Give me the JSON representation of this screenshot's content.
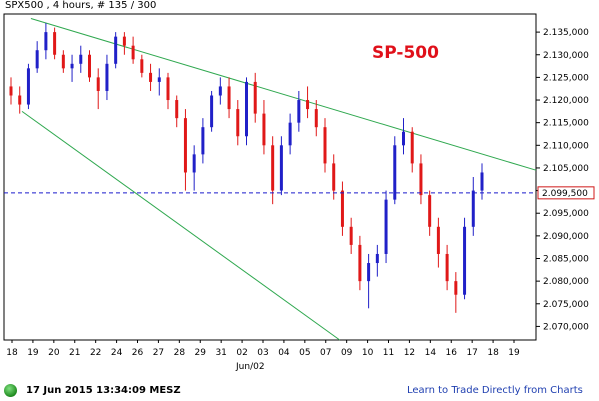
{
  "header": {
    "title": "SPX500 , 4 hours, # 135 / 300"
  },
  "chart_title": "SP-500",
  "status": {
    "timestamp": "17 Jun 2015 13:34:09 MESZ"
  },
  "promo_link": "Learn to Trade Directly from Charts",
  "colors": {
    "up": "#2020c8",
    "down": "#e01818",
    "trendline": "#2fa84f",
    "current_line": "#1a1acc",
    "title": "#e0101a"
  },
  "chart_data": {
    "type": "candlestick",
    "timeframe": "4 hours",
    "ylim": [
      2067,
      2139
    ],
    "y_ticks": [
      "2.070,000",
      "2.075,000",
      "2.080,000",
      "2.085,000",
      "2.090,000",
      "2.095,000",
      "2.100,000",
      "2.105,000",
      "2.110,000",
      "2.115,000",
      "2.120,000",
      "2.125,000",
      "2.130,000",
      "2.135,000"
    ],
    "x_ticks": [
      "18",
      "19",
      "20",
      "21",
      "22",
      "24",
      "26",
      "27",
      "28",
      "29",
      "31",
      "02",
      "03",
      "04",
      "05",
      "07",
      "09",
      "10",
      "11",
      "12",
      "14",
      "16",
      "17",
      "18",
      "19"
    ],
    "x_sublabel": "Jun/02",
    "current_price": 2099.5,
    "current_price_label": "2.099,500",
    "trend_upper": [
      [
        19,
        2138
      ],
      [
        19.98,
        2105
      ]
    ],
    "trend_lower": [
      [
        18,
        2118
      ],
      [
        19.13,
        2067
      ]
    ],
    "candles": [
      [
        2123,
        2125,
        2119,
        2121
      ],
      [
        2121,
        2123,
        2117,
        2119
      ],
      [
        2119,
        2128,
        2118,
        2127
      ],
      [
        2127,
        2133,
        2126,
        2131
      ],
      [
        2131,
        2137,
        2129,
        2135
      ],
      [
        2135,
        2136,
        2129,
        2130
      ],
      [
        2130,
        2131,
        2126,
        2127
      ],
      [
        2127,
        2130,
        2124,
        2128
      ],
      [
        2128,
        2132,
        2126,
        2130
      ],
      [
        2130,
        2131,
        2124,
        2125
      ],
      [
        2125,
        2127,
        2118,
        2122
      ],
      [
        2122,
        2130,
        2120,
        2128
      ],
      [
        2128,
        2135,
        2127,
        2134
      ],
      [
        2134,
        2135,
        2130,
        2132
      ],
      [
        2132,
        2134,
        2128,
        2129
      ],
      [
        2129,
        2130,
        2125,
        2126
      ],
      [
        2126,
        2128,
        2122,
        2124
      ],
      [
        2124,
        2127,
        2121,
        2125
      ],
      [
        2125,
        2126,
        2118,
        2120
      ],
      [
        2120,
        2121,
        2114,
        2116
      ],
      [
        2116,
        2118,
        2100,
        2104
      ],
      [
        2104,
        2110,
        2100,
        2108
      ],
      [
        2108,
        2116,
        2106,
        2114
      ],
      [
        2114,
        2122,
        2113,
        2121
      ],
      [
        2121,
        2125,
        2119,
        2123
      ],
      [
        2123,
        2125,
        2116,
        2118
      ],
      [
        2118,
        2120,
        2110,
        2112
      ],
      [
        2112,
        2125,
        2110,
        2124
      ],
      [
        2124,
        2126,
        2115,
        2117
      ],
      [
        2117,
        2120,
        2108,
        2110
      ],
      [
        2110,
        2112,
        2097,
        2100
      ],
      [
        2100,
        2112,
        2099,
        2110
      ],
      [
        2110,
        2117,
        2108,
        2115
      ],
      [
        2115,
        2122,
        2113,
        2120
      ],
      [
        2120,
        2123,
        2116,
        2118
      ],
      [
        2118,
        2120,
        2112,
        2114
      ],
      [
        2114,
        2116,
        2104,
        2106
      ],
      [
        2106,
        2108,
        2098,
        2100
      ],
      [
        2100,
        2102,
        2090,
        2092
      ],
      [
        2092,
        2094,
        2086,
        2088
      ],
      [
        2088,
        2090,
        2078,
        2080
      ],
      [
        2080,
        2086,
        2074,
        2084
      ],
      [
        2084,
        2088,
        2081,
        2086
      ],
      [
        2086,
        2100,
        2084,
        2098
      ],
      [
        2098,
        2112,
        2097,
        2110
      ],
      [
        2110,
        2116,
        2108,
        2113
      ],
      [
        2113,
        2114,
        2104,
        2106
      ],
      [
        2106,
        2108,
        2097,
        2099
      ],
      [
        2099,
        2100,
        2090,
        2092
      ],
      [
        2092,
        2094,
        2083,
        2086
      ],
      [
        2086,
        2088,
        2078,
        2080
      ],
      [
        2080,
        2082,
        2073,
        2077
      ],
      [
        2077,
        2094,
        2076,
        2092
      ],
      [
        2092,
        2103,
        2090,
        2100
      ],
      [
        2100,
        2106,
        2098,
        2104
      ]
    ]
  }
}
